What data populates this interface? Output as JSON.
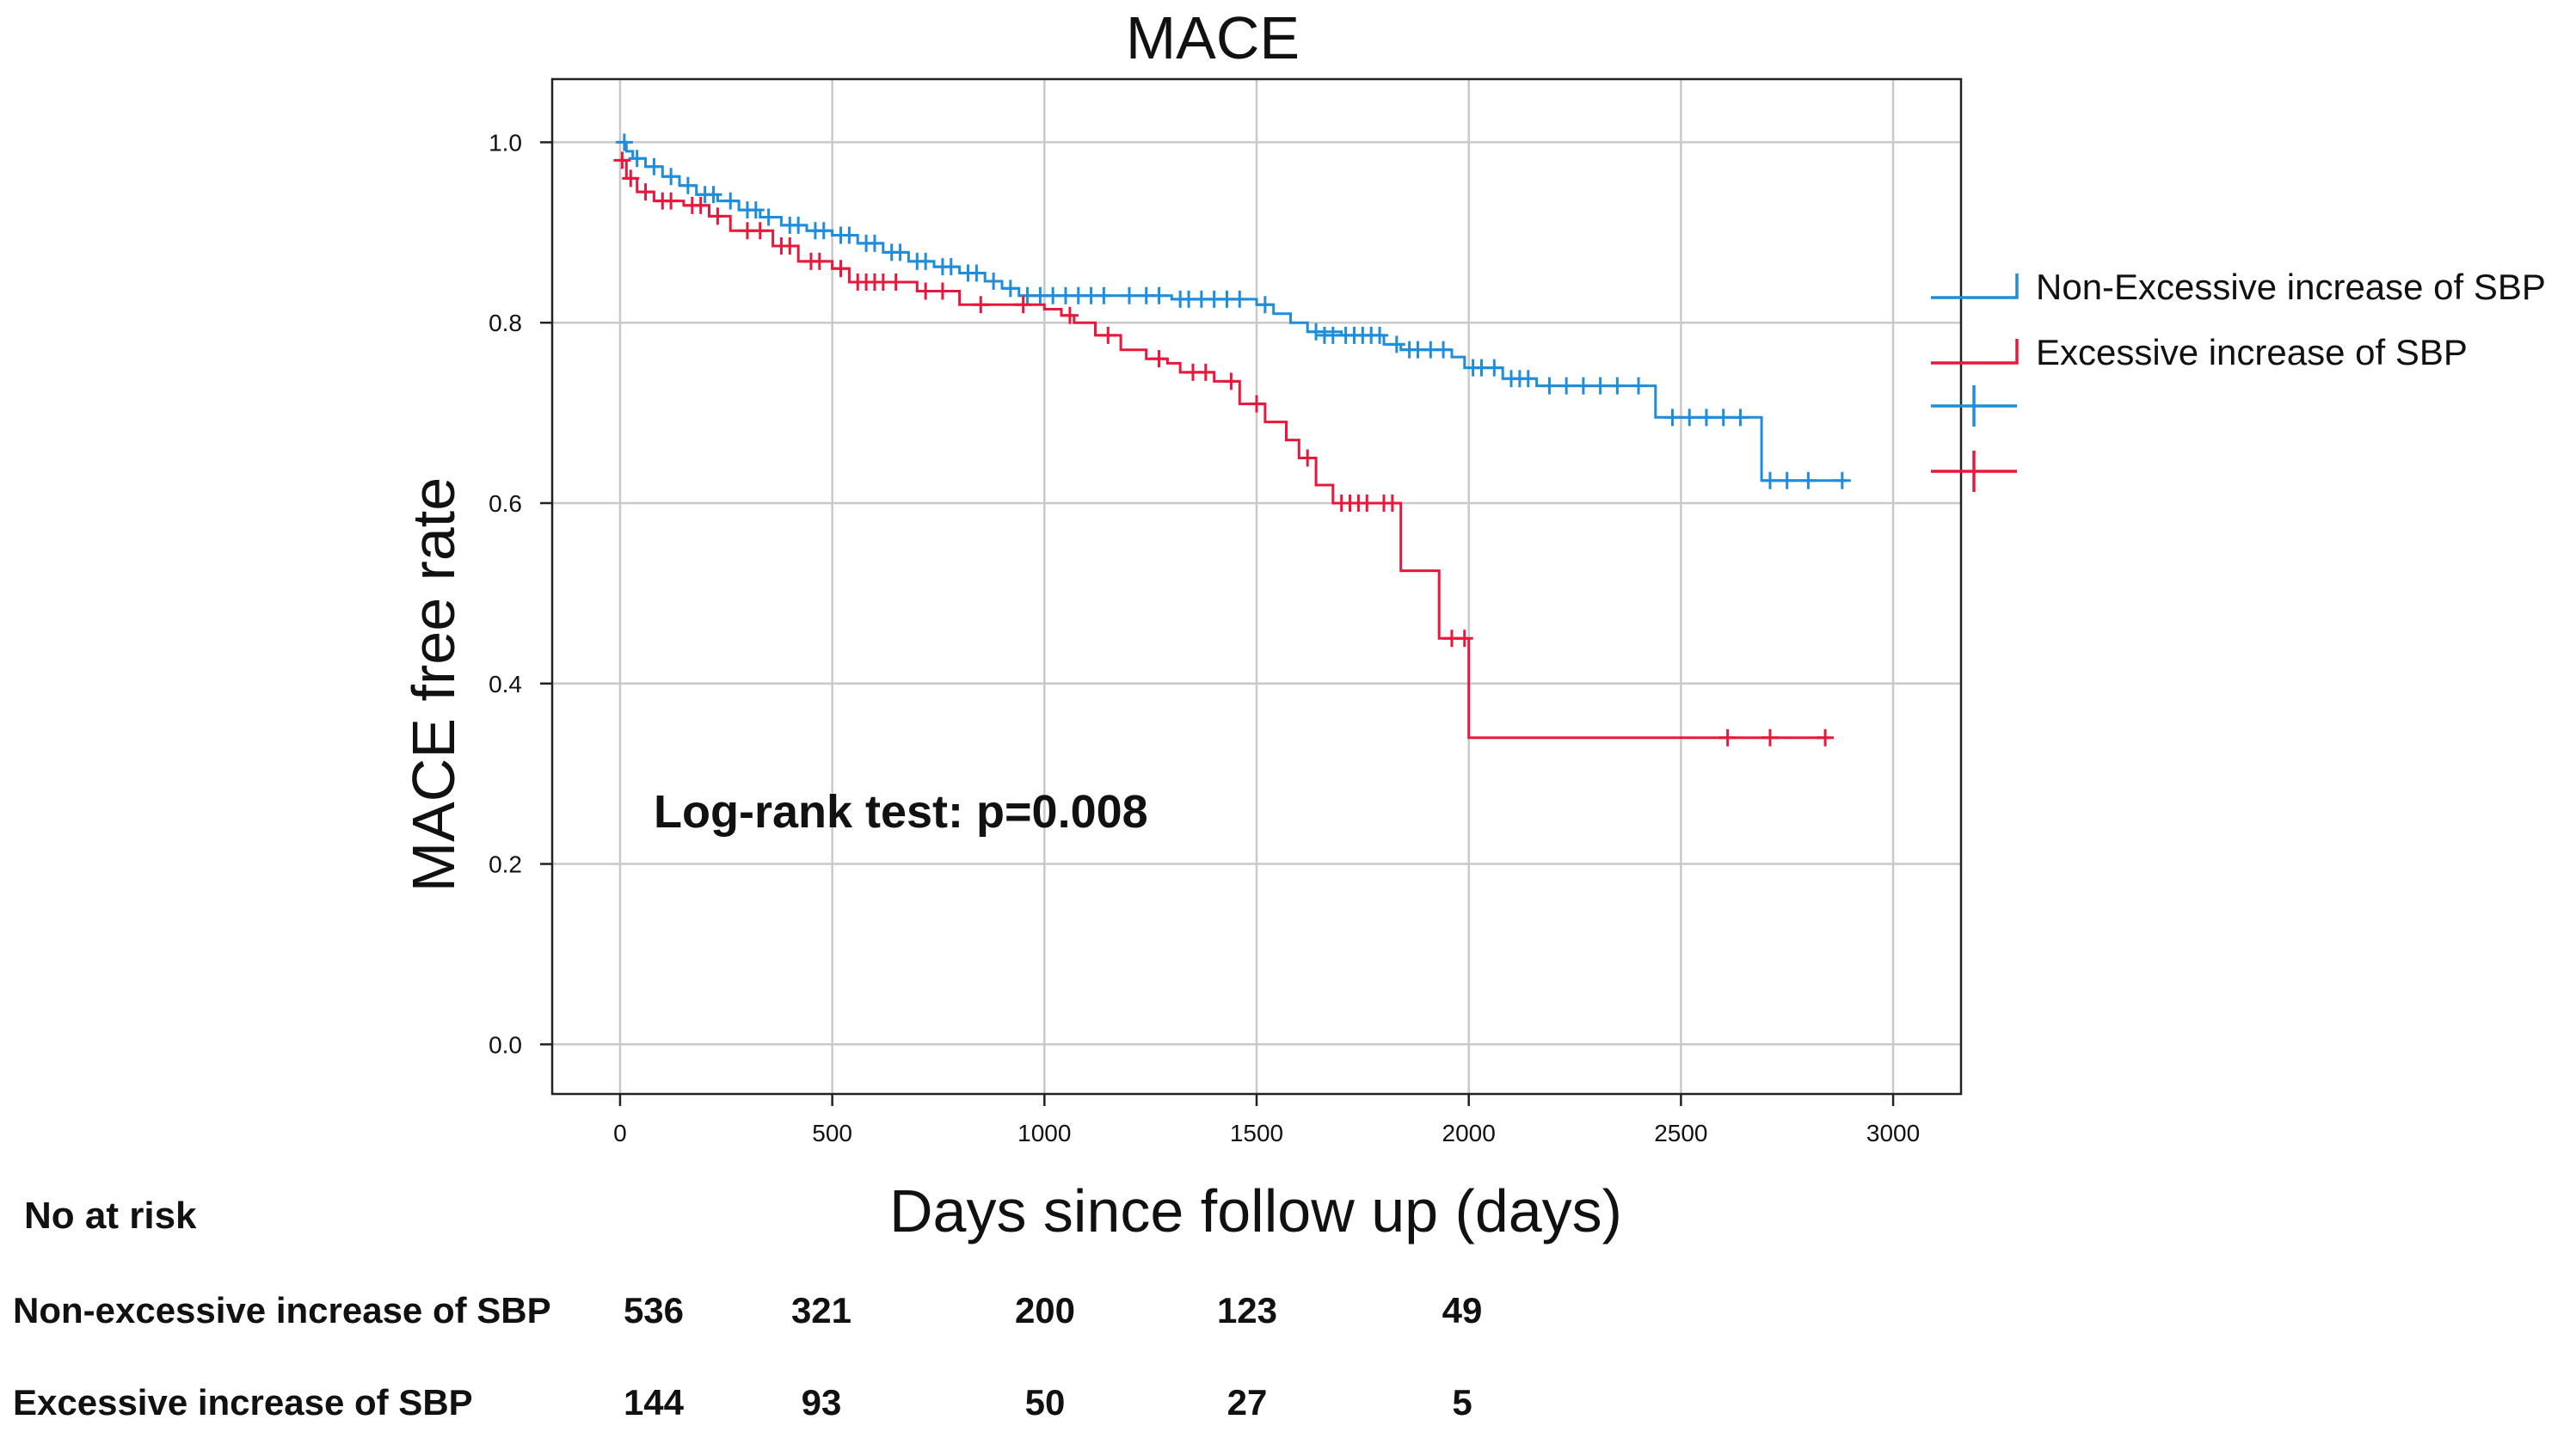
{
  "chart_data": {
    "type": "line",
    "subtype": "kaplan-meier",
    "title": "MACE",
    "xlabel": "Days since follow up (days)",
    "ylabel": "MACE free rate",
    "xlim": [
      -160,
      3160
    ],
    "ylim": [
      -0.055,
      1.07
    ],
    "x_ticks": [
      0,
      500,
      1000,
      1500,
      2000,
      2500,
      3000
    ],
    "x_tick_labels": [
      "0",
      "500",
      "1000",
      "1500",
      "2000",
      "2500",
      "3000"
    ],
    "y_ticks": [
      0.0,
      0.2,
      0.4,
      0.6,
      0.8,
      1.0
    ],
    "y_tick_labels": [
      "0.0",
      "0.2",
      "0.4",
      "0.6",
      "0.8",
      "1.0"
    ],
    "grid": true,
    "annotation": "Log-rank test: p=0.008",
    "legend_position": "right",
    "legend": [
      {
        "label": "Non-Excessive increase of SBP",
        "color": "#1f8ddb",
        "kind": "step"
      },
      {
        "label": "Excessive increase of SBP",
        "color": "#e8183c",
        "kind": "step"
      },
      {
        "label": "",
        "color": "#1f8ddb",
        "kind": "censor"
      },
      {
        "label": "",
        "color": "#e8183c",
        "kind": "censor"
      }
    ],
    "series": [
      {
        "name": "Non-Excessive increase of SBP",
        "color": "#1f8ddb",
        "steps": [
          [
            0,
            1.0
          ],
          [
            15,
            0.99
          ],
          [
            30,
            0.982
          ],
          [
            60,
            0.973
          ],
          [
            100,
            0.962
          ],
          [
            140,
            0.952
          ],
          [
            180,
            0.942
          ],
          [
            230,
            0.935
          ],
          [
            280,
            0.925
          ],
          [
            330,
            0.917
          ],
          [
            380,
            0.908
          ],
          [
            440,
            0.902
          ],
          [
            500,
            0.897
          ],
          [
            560,
            0.888
          ],
          [
            620,
            0.878
          ],
          [
            680,
            0.868
          ],
          [
            740,
            0.862
          ],
          [
            800,
            0.855
          ],
          [
            860,
            0.846
          ],
          [
            900,
            0.838
          ],
          [
            940,
            0.83
          ],
          [
            1000,
            0.83
          ],
          [
            1300,
            0.826
          ],
          [
            1500,
            0.82
          ],
          [
            1540,
            0.81
          ],
          [
            1580,
            0.8
          ],
          [
            1620,
            0.79
          ],
          [
            1700,
            0.786
          ],
          [
            1800,
            0.776
          ],
          [
            1840,
            0.77
          ],
          [
            1960,
            0.762
          ],
          [
            1990,
            0.75
          ],
          [
            2080,
            0.738
          ],
          [
            2160,
            0.73
          ],
          [
            2440,
            0.695
          ],
          [
            2690,
            0.625
          ],
          [
            2890,
            0.625
          ]
        ],
        "censors": [
          [
            10,
            1.0
          ],
          [
            40,
            0.982
          ],
          [
            80,
            0.973
          ],
          [
            120,
            0.962
          ],
          [
            160,
            0.952
          ],
          [
            200,
            0.942
          ],
          [
            220,
            0.942
          ],
          [
            260,
            0.935
          ],
          [
            300,
            0.925
          ],
          [
            320,
            0.925
          ],
          [
            350,
            0.917
          ],
          [
            400,
            0.908
          ],
          [
            420,
            0.908
          ],
          [
            460,
            0.902
          ],
          [
            480,
            0.902
          ],
          [
            520,
            0.897
          ],
          [
            540,
            0.897
          ],
          [
            580,
            0.888
          ],
          [
            600,
            0.888
          ],
          [
            640,
            0.878
          ],
          [
            660,
            0.878
          ],
          [
            700,
            0.868
          ],
          [
            720,
            0.868
          ],
          [
            760,
            0.862
          ],
          [
            780,
            0.862
          ],
          [
            820,
            0.855
          ],
          [
            840,
            0.855
          ],
          [
            880,
            0.846
          ],
          [
            920,
            0.838
          ],
          [
            960,
            0.83
          ],
          [
            990,
            0.83
          ],
          [
            1020,
            0.83
          ],
          [
            1050,
            0.83
          ],
          [
            1080,
            0.83
          ],
          [
            1110,
            0.83
          ],
          [
            1140,
            0.83
          ],
          [
            1200,
            0.83
          ],
          [
            1240,
            0.83
          ],
          [
            1270,
            0.83
          ],
          [
            1320,
            0.826
          ],
          [
            1340,
            0.826
          ],
          [
            1370,
            0.826
          ],
          [
            1400,
            0.826
          ],
          [
            1430,
            0.826
          ],
          [
            1460,
            0.826
          ],
          [
            1520,
            0.82
          ],
          [
            1640,
            0.79
          ],
          [
            1660,
            0.786
          ],
          [
            1680,
            0.786
          ],
          [
            1710,
            0.786
          ],
          [
            1730,
            0.786
          ],
          [
            1750,
            0.786
          ],
          [
            1770,
            0.786
          ],
          [
            1790,
            0.786
          ],
          [
            1830,
            0.776
          ],
          [
            1860,
            0.77
          ],
          [
            1880,
            0.77
          ],
          [
            1910,
            0.77
          ],
          [
            1940,
            0.77
          ],
          [
            2010,
            0.75
          ],
          [
            2030,
            0.75
          ],
          [
            2060,
            0.75
          ],
          [
            2100,
            0.738
          ],
          [
            2120,
            0.738
          ],
          [
            2140,
            0.738
          ],
          [
            2190,
            0.73
          ],
          [
            2230,
            0.73
          ],
          [
            2270,
            0.73
          ],
          [
            2310,
            0.73
          ],
          [
            2350,
            0.73
          ],
          [
            2400,
            0.73
          ],
          [
            2480,
            0.695
          ],
          [
            2520,
            0.695
          ],
          [
            2560,
            0.695
          ],
          [
            2600,
            0.695
          ],
          [
            2640,
            0.695
          ],
          [
            2710,
            0.625
          ],
          [
            2750,
            0.625
          ],
          [
            2800,
            0.625
          ],
          [
            2880,
            0.625
          ]
        ]
      },
      {
        "name": "Excessive increase of SBP",
        "color": "#e8183c",
        "steps": [
          [
            0,
            0.98
          ],
          [
            15,
            0.96
          ],
          [
            40,
            0.945
          ],
          [
            80,
            0.935
          ],
          [
            150,
            0.93
          ],
          [
            210,
            0.918
          ],
          [
            260,
            0.902
          ],
          [
            360,
            0.885
          ],
          [
            420,
            0.868
          ],
          [
            500,
            0.86
          ],
          [
            540,
            0.845
          ],
          [
            700,
            0.835
          ],
          [
            800,
            0.82
          ],
          [
            1000,
            0.815
          ],
          [
            1040,
            0.808
          ],
          [
            1070,
            0.8
          ],
          [
            1120,
            0.786
          ],
          [
            1180,
            0.77
          ],
          [
            1240,
            0.76
          ],
          [
            1290,
            0.755
          ],
          [
            1320,
            0.745
          ],
          [
            1400,
            0.735
          ],
          [
            1460,
            0.71
          ],
          [
            1520,
            0.69
          ],
          [
            1570,
            0.67
          ],
          [
            1600,
            0.65
          ],
          [
            1640,
            0.62
          ],
          [
            1680,
            0.6
          ],
          [
            1840,
            0.525
          ],
          [
            1930,
            0.45
          ],
          [
            2000,
            0.34
          ],
          [
            2850,
            0.34
          ]
        ],
        "censors": [
          [
            5,
            0.98
          ],
          [
            25,
            0.96
          ],
          [
            60,
            0.945
          ],
          [
            100,
            0.935
          ],
          [
            120,
            0.935
          ],
          [
            170,
            0.93
          ],
          [
            190,
            0.93
          ],
          [
            230,
            0.918
          ],
          [
            300,
            0.902
          ],
          [
            330,
            0.902
          ],
          [
            380,
            0.885
          ],
          [
            400,
            0.885
          ],
          [
            450,
            0.868
          ],
          [
            470,
            0.868
          ],
          [
            520,
            0.86
          ],
          [
            560,
            0.845
          ],
          [
            580,
            0.845
          ],
          [
            600,
            0.845
          ],
          [
            620,
            0.845
          ],
          [
            650,
            0.845
          ],
          [
            720,
            0.835
          ],
          [
            760,
            0.835
          ],
          [
            850,
            0.82
          ],
          [
            950,
            0.82
          ],
          [
            1060,
            0.808
          ],
          [
            1150,
            0.786
          ],
          [
            1270,
            0.76
          ],
          [
            1350,
            0.745
          ],
          [
            1380,
            0.745
          ],
          [
            1440,
            0.735
          ],
          [
            1500,
            0.71
          ],
          [
            1620,
            0.65
          ],
          [
            1700,
            0.6
          ],
          [
            1720,
            0.6
          ],
          [
            1740,
            0.6
          ],
          [
            1760,
            0.6
          ],
          [
            1800,
            0.6
          ],
          [
            1820,
            0.6
          ],
          [
            1960,
            0.45
          ],
          [
            1990,
            0.45
          ],
          [
            2610,
            0.34
          ],
          [
            2710,
            0.34
          ],
          [
            2840,
            0.34
          ]
        ]
      }
    ],
    "risk_table": {
      "heading": "No at risk",
      "rows": [
        {
          "label": "Non-excessive increase of SBP",
          "values": [
            "536",
            "321",
            "200",
            "123",
            "49"
          ]
        },
        {
          "label": "Excessive increase of SBP",
          "values": [
            "144",
            "93",
            "50",
            "27",
            "5"
          ]
        }
      ]
    }
  }
}
